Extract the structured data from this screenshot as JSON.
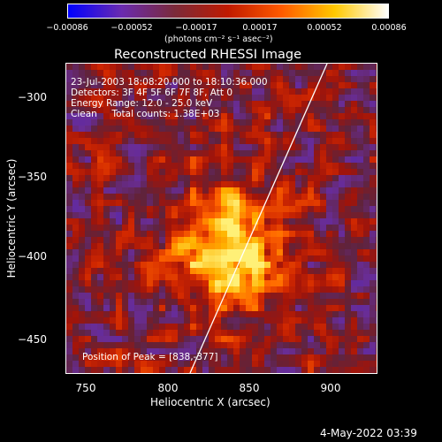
{
  "colorbar": {
    "ticks": [
      "−0.00086",
      "−0.00052",
      "−0.00017",
      "0.00017",
      "0.00052",
      "0.00086"
    ],
    "units": "(photons cm⁻² s⁻¹ asec⁻²)",
    "colors": [
      "#0000ff",
      "#6a2bb0",
      "#7b2a3a",
      "#c01a00",
      "#ff5a00",
      "#ffc800",
      "#ffffff"
    ]
  },
  "image": {
    "title": "Reconstructed RHESSI Image",
    "time_range": "23-Jul-2003 18:08:20.000 to 18:10:36.000",
    "detectors": "Detectors: 3F 4F 5F 6F 7F 8F, Att 0",
    "energy_range": "Energy Range: 12.0 - 25.0 keV",
    "method": "Clean     Total counts: 1.38E+03",
    "peak": "Position of Peak = [838,-377]",
    "peak_position": [
      838,
      -377
    ]
  },
  "axes": {
    "xlabel": "Heliocentric X (arcsec)",
    "ylabel": "Heliocentric Y (arcsec)",
    "xlim": [
      740,
      930
    ],
    "ylim": [
      -475,
      -285
    ],
    "xticks": [
      "750",
      "800",
      "850",
      "900"
    ],
    "yticks": [
      "−300",
      "−350",
      "−400",
      "−450"
    ]
  },
  "footer": {
    "date": "4-May-2022 03:39"
  }
}
